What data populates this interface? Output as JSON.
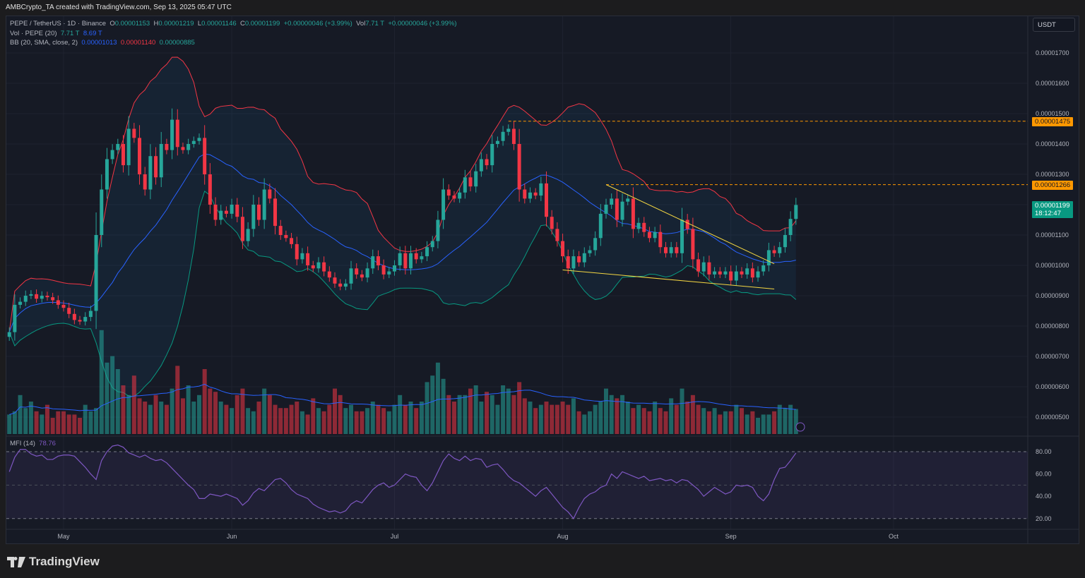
{
  "credit": "AMBCrypto_TA created with TradingView.com, Sep 13, 2025 05:47 UTC",
  "legend": {
    "symbol": "PEPE / TetherUS · 1D · Binance",
    "o_label": "O",
    "o": "0.00001153",
    "h_label": "H",
    "h": "0.00001219",
    "l_label": "L",
    "l": "0.00001146",
    "c_label": "C",
    "c": "0.00001199",
    "change": "+0.00000046 (+3.99%)",
    "vol_label": "Vol",
    "vol": "7.71 T",
    "vol_change": "+0.00000046 (+3.99%)",
    "vol_ind": "Vol · PEPE (20)",
    "vol_v1": "7.71 T",
    "vol_v2": "8.69 T",
    "bb": "BB (20, SMA, close, 2)",
    "bb_basis": "0.00001013",
    "bb_upper": "0.00001140",
    "bb_lower": "0.00000885",
    "mfi": "MFI (14)",
    "mfi_value": "78.76"
  },
  "currency": "USDT",
  "price_tags": {
    "level1": "0.00001475",
    "level2": "0.00001266",
    "last": "0.00001199",
    "countdown": "18:12:47"
  },
  "brand": "TradingView",
  "colors": {
    "up": "#26a69a",
    "down": "#f23645",
    "basis": "#2962ff",
    "upper": "#f23645",
    "lower": "#089981",
    "level": "#ff9800",
    "wedge": "#f5d742",
    "mfi": "#7e57c2"
  },
  "chart_data": {
    "type": "candlestick",
    "title": "PEPE / TetherUS 1D",
    "start_date": "Apr 21",
    "price_unit": "1e-8 USDT",
    "y_ticks": [
      "0.00000500",
      "0.00000600",
      "0.00000700",
      "0.00000800",
      "0.00000900",
      "0.00001000",
      "0.00001100",
      "0.00001200",
      "0.00001300",
      "0.00001400",
      "0.00001500",
      "0.00001600",
      "0.00001700"
    ],
    "y_tick_values": [
      500,
      600,
      700,
      800,
      900,
      1000,
      1100,
      1200,
      1300,
      1400,
      1500,
      1600,
      1700
    ],
    "x_ticks": [
      {
        "label": "May",
        "day": 10
      },
      {
        "label": "Jun",
        "day": 41
      },
      {
        "label": "Jul",
        "day": 71
      },
      {
        "label": "Aug",
        "day": 102
      },
      {
        "label": "Sep",
        "day": 133
      },
      {
        "label": "Oct",
        "day": 163
      }
    ],
    "closes": [
      780,
      870,
      880,
      900,
      905,
      890,
      900,
      895,
      885,
      870,
      860,
      840,
      820,
      815,
      830,
      850,
      1100,
      1250,
      1350,
      1380,
      1400,
      1330,
      1450,
      1420,
      1300,
      1250,
      1360,
      1290,
      1400,
      1380,
      1480,
      1390,
      1380,
      1400,
      1410,
      1420,
      1300,
      1200,
      1150,
      1180,
      1170,
      1200,
      1160,
      1080,
      1120,
      1200,
      1150,
      1250,
      1220,
      1130,
      1100,
      1090,
      1070,
      1020,
      1040,
      1000,
      990,
      1010,
      980,
      960,
      940,
      930,
      940,
      990,
      970,
      960,
      990,
      1030,
      1000,
      970,
      980,
      1000,
      1040,
      990,
      1040,
      1020,
      1030,
      1060,
      1080,
      1150,
      1250,
      1230,
      1220,
      1240,
      1290,
      1260,
      1310,
      1350,
      1330,
      1400,
      1410,
      1440,
      1450,
      1400,
      1250,
      1220,
      1240,
      1230,
      1270,
      1160,
      1120,
      1080,
      1030,
      990,
      1030,
      1010,
      1040,
      1050,
      1090,
      1170,
      1200,
      1220,
      1150,
      1210,
      1220,
      1120,
      1140,
      1110,
      1090,
      1110,
      1060,
      1040,
      1060,
      1040,
      1150,
      1120,
      1020,
      980,
      1010,
      970,
      980,
      970,
      980,
      950,
      980,
      970,
      990,
      960,
      980,
      1000,
      1050,
      1040,
      1060,
      1100,
      1153,
      1199
    ],
    "volumes_T": [
      6,
      7,
      12,
      8,
      10,
      7,
      6,
      9,
      5,
      7,
      7,
      6,
      6,
      5,
      9,
      7,
      8,
      32,
      22,
      24,
      20,
      15,
      12,
      18,
      11,
      10,
      9,
      12,
      10,
      9,
      14,
      21,
      11,
      15,
      10,
      12,
      20,
      14,
      13,
      10,
      9,
      8,
      12,
      14,
      8,
      7,
      10,
      14,
      12,
      9,
      8,
      8,
      9,
      10,
      7,
      6,
      11,
      8,
      7,
      9,
      14,
      12,
      8,
      9,
      7,
      7,
      8,
      10,
      9,
      8,
      7,
      9,
      12,
      9,
      10,
      8,
      10,
      16,
      18,
      22,
      17,
      12,
      10,
      12,
      12,
      14,
      15,
      10,
      13,
      12,
      9,
      15,
      14,
      12,
      16,
      11,
      10,
      8,
      9,
      10,
      9,
      9,
      10,
      9,
      11,
      7,
      6,
      7,
      9,
      10,
      14,
      12,
      11,
      12,
      10,
      8,
      9,
      8,
      7,
      10,
      8,
      7,
      11,
      9,
      14,
      10,
      12,
      9,
      8,
      7,
      8,
      6,
      7,
      7,
      9,
      8,
      6,
      7,
      5,
      6,
      6,
      7,
      9,
      8,
      9,
      7.71
    ],
    "mfi": [
      62,
      75,
      82,
      82,
      78,
      76,
      77,
      73,
      73,
      76,
      77,
      77,
      76,
      71,
      66,
      60,
      55,
      72,
      80,
      85,
      86,
      84,
      79,
      77,
      75,
      77,
      74,
      72,
      73,
      70,
      65,
      60,
      55,
      50,
      46,
      38,
      38,
      42,
      41,
      40,
      42,
      40,
      38,
      32,
      36,
      43,
      47,
      45,
      50,
      55,
      56,
      52,
      46,
      42,
      40,
      38,
      33,
      30,
      28,
      26,
      27,
      25,
      27,
      33,
      36,
      34,
      40,
      46,
      50,
      52,
      48,
      50,
      55,
      60,
      58,
      57,
      50,
      45,
      52,
      62,
      72,
      78,
      74,
      72,
      76,
      72,
      74,
      73,
      66,
      68,
      69,
      64,
      58,
      54,
      52,
      48,
      44,
      40,
      45,
      48,
      42,
      36,
      30,
      26,
      20,
      30,
      38,
      42,
      44,
      48,
      50,
      60,
      56,
      62,
      60,
      58,
      56,
      58,
      54,
      55,
      56,
      54,
      55,
      52,
      55,
      54,
      50,
      46,
      40,
      44,
      48,
      45,
      42,
      44,
      50,
      49,
      50,
      48,
      40,
      36,
      42,
      55,
      65,
      66,
      72,
      78.76
    ],
    "mfi_ticks": [
      "20.00",
      "40.00",
      "60.00",
      "80.00"
    ],
    "mfi_tick_values": [
      20,
      40,
      60,
      80
    ],
    "levels": [
      {
        "price": 1475,
        "from_day": 92
      },
      {
        "price": 1266,
        "from_day": 110
      }
    ],
    "wedge": {
      "upper": [
        [
          110,
          1266
        ],
        [
          141,
          1005
        ]
      ],
      "lower": [
        [
          102,
          985
        ],
        [
          141,
          922
        ]
      ]
    },
    "bollinger": {
      "period": 20,
      "mult": 2
    }
  }
}
